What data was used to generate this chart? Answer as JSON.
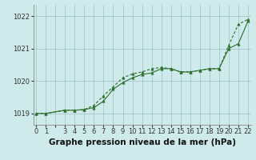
{
  "title": "Graphe pression niveau de la mer (hPa)",
  "background_color": "#ceeaea",
  "grid_color": "#aacccc",
  "line_color": "#2d6e2d",
  "series1_x": [
    0,
    1,
    3,
    4,
    5,
    6,
    7,
    8,
    9,
    10,
    11,
    12,
    13,
    14,
    15,
    16,
    17,
    18,
    19,
    20,
    21,
    22
  ],
  "series1_y": [
    1019.0,
    1019.0,
    1019.1,
    1019.1,
    1019.12,
    1019.25,
    1019.55,
    1019.82,
    1020.1,
    1020.22,
    1020.28,
    1020.38,
    1020.42,
    1020.38,
    1020.28,
    1020.28,
    1020.33,
    1020.38,
    1020.38,
    1021.1,
    1021.75,
    1021.9
  ],
  "series2_x": [
    0,
    1,
    3,
    4,
    5,
    6,
    7,
    8,
    9,
    10,
    11,
    12,
    13,
    14,
    15,
    16,
    17,
    18,
    19,
    20,
    21,
    22
  ],
  "series2_y": [
    1019.0,
    1019.0,
    1019.1,
    1019.1,
    1019.12,
    1019.18,
    1019.38,
    1019.75,
    1019.95,
    1020.1,
    1020.2,
    1020.25,
    1020.38,
    1020.38,
    1020.28,
    1020.28,
    1020.33,
    1020.38,
    1020.38,
    1021.0,
    1021.15,
    1021.85
  ],
  "ylim_min": 1018.65,
  "ylim_max": 1022.35,
  "yticks": [
    1019,
    1020,
    1021,
    1022
  ],
  "title_fontsize": 7.5,
  "tick_fontsize": 6.0,
  "marker_size": 2.5,
  "lw": 0.8
}
